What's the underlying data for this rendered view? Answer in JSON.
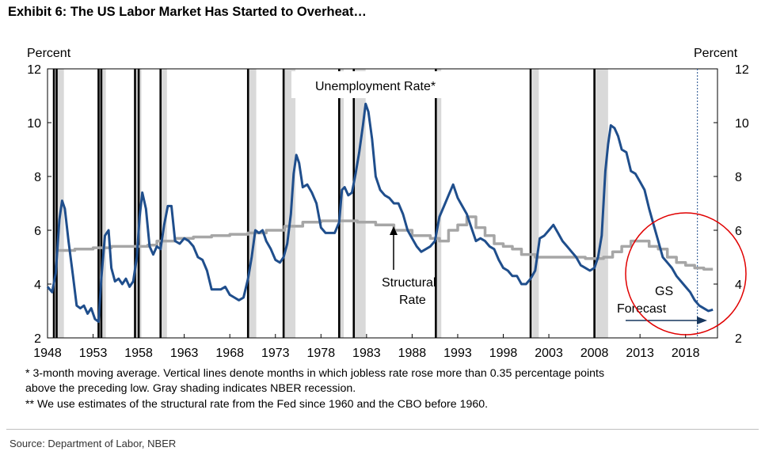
{
  "title": "Exhibit 6: The US Labor Market Has Started to Overheat…",
  "notes": [
    "* 3-month moving average. Vertical lines denote months in which jobless rate rose more than 0.35 percentage points",
    "above the preceding low. Gray shading indicates NBER recession.",
    "** We use estimates of the structural rate from the Fed since 1960 and the CBO before 1960."
  ],
  "source": "Source: Department of Labor, NBER",
  "colors": {
    "unemployment": "#1f4e8c",
    "structural": "#a6a6a6",
    "recession": "#d9d9d9",
    "vline": "#000000",
    "circle": "#e00000",
    "arrow": "#17375e"
  },
  "chart_data": {
    "type": "line",
    "xlim": [
      1948,
      2021.5
    ],
    "ylim": [
      2,
      12
    ],
    "y_ticks": [
      2,
      4,
      6,
      8,
      10,
      12
    ],
    "x_ticks": [
      1948,
      1953,
      1958,
      1963,
      1968,
      1973,
      1978,
      1983,
      1988,
      1993,
      1998,
      2003,
      2008,
      2013,
      2018
    ],
    "y_axis_label_left": "Percent",
    "y_axis_label_right": "Percent",
    "series": [
      {
        "name": "Unemployment Rate*",
        "x": [
          1948.0,
          1948.5,
          1948.9,
          1949.3,
          1949.6,
          1949.9,
          1950.3,
          1950.8,
          1951.2,
          1951.6,
          1952.0,
          1952.4,
          1952.8,
          1953.2,
          1953.6,
          1953.9,
          1954.3,
          1954.7,
          1955.0,
          1955.4,
          1955.8,
          1956.2,
          1956.6,
          1957.0,
          1957.4,
          1957.8,
          1958.1,
          1958.4,
          1958.8,
          1959.2,
          1959.6,
          1960.0,
          1960.4,
          1960.8,
          1961.2,
          1961.6,
          1962.0,
          1962.5,
          1963.0,
          1963.5,
          1964.0,
          1964.5,
          1965.0,
          1965.5,
          1966.0,
          1966.5,
          1967.0,
          1967.5,
          1968.0,
          1968.5,
          1969.0,
          1969.5,
          1970.0,
          1970.4,
          1970.8,
          1971.2,
          1971.6,
          1972.0,
          1972.5,
          1973.0,
          1973.5,
          1973.9,
          1974.3,
          1974.7,
          1975.0,
          1975.3,
          1975.6,
          1976.0,
          1976.5,
          1977.0,
          1977.5,
          1978.0,
          1978.5,
          1979.0,
          1979.5,
          1980.0,
          1980.3,
          1980.6,
          1981.0,
          1981.4,
          1981.8,
          1982.2,
          1982.6,
          1982.9,
          1983.2,
          1983.6,
          1984.0,
          1984.5,
          1985.0,
          1985.5,
          1986.0,
          1986.5,
          1987.0,
          1987.5,
          1988.0,
          1988.5,
          1989.0,
          1989.5,
          1990.0,
          1990.5,
          1991.0,
          1991.5,
          1992.0,
          1992.5,
          1993.0,
          1993.5,
          1994.0,
          1994.5,
          1995.0,
          1995.5,
          1996.0,
          1996.5,
          1997.0,
          1997.5,
          1998.0,
          1998.5,
          1999.0,
          1999.5,
          2000.0,
          2000.5,
          2001.0,
          2001.5,
          2002.0,
          2002.5,
          2003.0,
          2003.5,
          2004.0,
          2004.5,
          2005.0,
          2005.5,
          2006.0,
          2006.5,
          2007.0,
          2007.5,
          2008.0,
          2008.4,
          2008.8,
          2009.2,
          2009.5,
          2009.8,
          2010.2,
          2010.6,
          2011.0,
          2011.5,
          2012.0,
          2012.5,
          2013.0,
          2013.5,
          2014.0,
          2014.5,
          2015.0,
          2015.5,
          2016.0,
          2016.5,
          2017.0,
          2017.5,
          2018.0,
          2018.5,
          2019.0,
          2019.5,
          2020.0,
          2020.5,
          2021.0
        ],
        "y": [
          3.9,
          3.7,
          4.4,
          6.4,
          7.1,
          6.8,
          5.6,
          4.3,
          3.2,
          3.1,
          3.2,
          2.9,
          3.1,
          2.7,
          2.6,
          4.2,
          5.8,
          6.0,
          4.6,
          4.1,
          4.2,
          4.0,
          4.2,
          3.9,
          4.1,
          5.0,
          6.5,
          7.4,
          6.8,
          5.4,
          5.1,
          5.4,
          5.3,
          6.2,
          6.9,
          6.9,
          5.6,
          5.5,
          5.7,
          5.6,
          5.4,
          5.0,
          4.9,
          4.5,
          3.8,
          3.8,
          3.8,
          3.9,
          3.6,
          3.5,
          3.4,
          3.5,
          4.2,
          5.0,
          6.0,
          5.9,
          6.0,
          5.6,
          5.3,
          4.9,
          4.8,
          5.0,
          5.5,
          6.6,
          8.1,
          8.8,
          8.5,
          7.6,
          7.7,
          7.4,
          7.0,
          6.1,
          5.9,
          5.9,
          5.9,
          6.3,
          7.5,
          7.6,
          7.3,
          7.4,
          8.1,
          8.9,
          9.9,
          10.7,
          10.4,
          9.4,
          8.0,
          7.5,
          7.3,
          7.2,
          7.0,
          7.0,
          6.6,
          6.0,
          5.7,
          5.4,
          5.2,
          5.3,
          5.4,
          5.6,
          6.5,
          6.9,
          7.3,
          7.7,
          7.2,
          6.9,
          6.6,
          6.1,
          5.6,
          5.7,
          5.6,
          5.4,
          5.3,
          4.9,
          4.6,
          4.5,
          4.3,
          4.3,
          4.0,
          4.0,
          4.2,
          4.5,
          5.7,
          5.8,
          6.0,
          6.2,
          5.9,
          5.6,
          5.4,
          5.2,
          5.0,
          4.7,
          4.6,
          4.5,
          4.6,
          5.0,
          5.8,
          8.2,
          9.2,
          9.9,
          9.8,
          9.5,
          9.0,
          8.9,
          8.2,
          8.1,
          7.8,
          7.5,
          6.8,
          6.2,
          5.6,
          5.0,
          4.8,
          4.6,
          4.3,
          4.1,
          3.9,
          3.7,
          3.4,
          3.2,
          3.1,
          3.0,
          3.05
        ]
      },
      {
        "name": "Structural Rate",
        "x": [
          1949.0,
          1951.0,
          1953.0,
          1955.0,
          1957.0,
          1959.0,
          1960.0,
          1962.0,
          1964.0,
          1966.0,
          1968.0,
          1970.0,
          1972.0,
          1974.0,
          1976.0,
          1978.0,
          1980.0,
          1982.0,
          1984.0,
          1986.0,
          1988.0,
          1990.0,
          1991.0,
          1992.0,
          1993.0,
          1994.0,
          1995.0,
          1996.0,
          1997.0,
          1998.0,
          1999.0,
          2000.0,
          2001.5,
          2003.0,
          2005.0,
          2007.0,
          2009.0,
          2010.0,
          2011.0,
          2012.0,
          2013.0,
          2014.0,
          2015.0,
          2016.0,
          2017.0,
          2018.0,
          2019.0,
          2020.0,
          2021.0
        ],
        "y": [
          5.25,
          5.3,
          5.35,
          5.4,
          5.4,
          5.45,
          5.6,
          5.7,
          5.75,
          5.8,
          5.85,
          5.9,
          6.0,
          6.15,
          6.3,
          6.35,
          6.35,
          6.3,
          6.2,
          6.0,
          5.8,
          5.7,
          5.6,
          6.0,
          6.2,
          6.5,
          6.1,
          5.8,
          5.5,
          5.4,
          5.3,
          5.1,
          5.0,
          5.0,
          5.0,
          4.95,
          5.0,
          5.2,
          5.4,
          5.6,
          5.6,
          5.4,
          5.3,
          5.0,
          4.8,
          4.7,
          4.6,
          4.55,
          4.55
        ]
      }
    ],
    "recessions": [
      [
        1948.9,
        1949.8
      ],
      [
        1953.6,
        1954.4
      ],
      [
        1957.6,
        1958.3
      ],
      [
        1960.3,
        1961.1
      ],
      [
        1969.9,
        1970.9
      ],
      [
        1973.9,
        1975.2
      ],
      [
        1980.0,
        1980.5
      ],
      [
        1981.5,
        1982.9
      ],
      [
        1990.5,
        1991.2
      ],
      [
        2001.2,
        2001.9
      ],
      [
        2007.9,
        2009.5
      ]
    ],
    "vertical_lines": [
      1948.7,
      1949.0,
      1953.6,
      1953.9,
      1957.6,
      1958.0,
      1960.4,
      1970.0,
      1973.9,
      1980.0,
      1981.6,
      1990.6,
      2001.0,
      2008.0
    ],
    "forecast_line_x": 2019.3,
    "annotations": {
      "unemployment_label": "Unemployment Rate*",
      "structural_label_1": "Structural",
      "structural_label_2": "Rate",
      "forecast_label_1": "GS",
      "forecast_label_2": "Forecast"
    }
  }
}
